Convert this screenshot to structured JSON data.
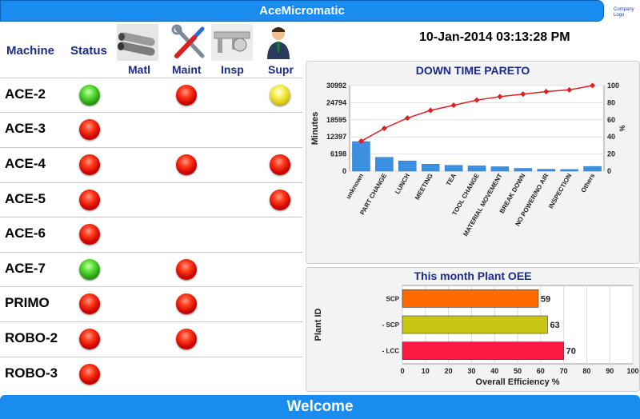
{
  "app": {
    "title": "AceMicromatic",
    "logo_text": "Company Logo"
  },
  "header": {
    "machine_label": "Machine",
    "status_label": "Status",
    "columns": [
      "Matl",
      "Maint",
      "Insp",
      "Supr"
    ]
  },
  "datetime": "10-Jan-2014 03:13:28 PM",
  "machines": [
    {
      "name": "ACE-2",
      "status": "green",
      "matl": "",
      "maint": "red",
      "insp": "",
      "supr": "yellow"
    },
    {
      "name": "ACE-3",
      "status": "red",
      "matl": "",
      "maint": "",
      "insp": "",
      "supr": ""
    },
    {
      "name": "ACE-4",
      "status": "red",
      "matl": "",
      "maint": "red",
      "insp": "",
      "supr": "red"
    },
    {
      "name": "ACE-5",
      "status": "red",
      "matl": "",
      "maint": "",
      "insp": "",
      "supr": "red"
    },
    {
      "name": "ACE-6",
      "status": "red",
      "matl": "",
      "maint": "",
      "insp": "",
      "supr": ""
    },
    {
      "name": "ACE-7",
      "status": "green",
      "matl": "",
      "maint": "red",
      "insp": "",
      "supr": ""
    },
    {
      "name": "PRIMO",
      "status": "red",
      "matl": "",
      "maint": "red",
      "insp": "",
      "supr": ""
    },
    {
      "name": "ROBO-2",
      "status": "red",
      "matl": "",
      "maint": "red",
      "insp": "",
      "supr": ""
    },
    {
      "name": "ROBO-3",
      "status": "red",
      "matl": "",
      "maint": "",
      "insp": "",
      "supr": ""
    }
  ],
  "colors": {
    "red": "#cc0000",
    "green": "#2aa012",
    "yellow": "#d8c815",
    "accent": "#1a8cf0",
    "title_blue": "#1a2b8c"
  },
  "footer": {
    "text": "Welcome"
  },
  "chart_data": [
    {
      "type": "bar",
      "title": "DOWN TIME PARETO",
      "ylabel": "Minutes",
      "y2label": "%",
      "categories": [
        "unknown",
        "PART CHANGE",
        "LUNCH",
        "MEETING",
        "TEA",
        "TOOL CHANGE",
        "MATERIAL MOVEMENT",
        "BREAK DOWN",
        "NO POWER/NO AIR",
        "INSPECTION",
        "Others"
      ],
      "values": [
        10700,
        5000,
        3700,
        2500,
        2100,
        1900,
        1600,
        1000,
        700,
        600,
        1700
      ],
      "cumulative_percent": [
        35,
        50,
        62,
        71,
        77,
        83,
        87,
        90,
        93,
        95,
        100
      ],
      "yticks": [
        0,
        6198,
        12397,
        18595,
        24794,
        30992
      ],
      "y2ticks": [
        0,
        20,
        40,
        60,
        80,
        100
      ],
      "ylim": [
        0,
        30992
      ],
      "y2lim": [
        0,
        100
      ],
      "bar_color": "#3d8fe0",
      "line_color": "#e02020"
    },
    {
      "type": "bar",
      "orientation": "horizontal",
      "title": "This month Plant OEE",
      "xlabel": "Overall Efficiency %",
      "ylabel": "Plant ID",
      "categories": [
        "SCP",
        "- SCP",
        "- LCC"
      ],
      "values": [
        59,
        63,
        70
      ],
      "colors": [
        "#ff6a00",
        "#c8c814",
        "#ff1a44"
      ],
      "xticks": [
        0,
        10,
        20,
        30,
        40,
        50,
        60,
        70,
        80,
        90,
        100
      ],
      "xlim": [
        0,
        100
      ]
    }
  ]
}
